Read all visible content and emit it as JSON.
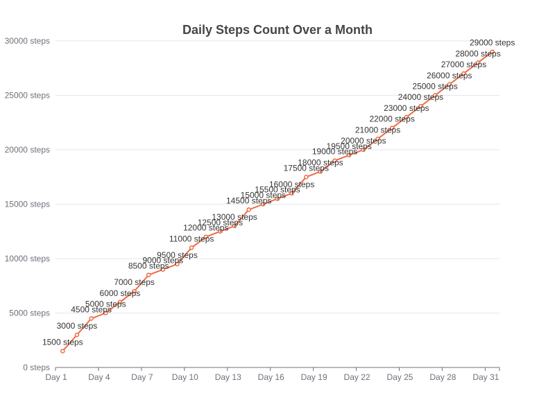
{
  "chart_data": {
    "type": "line",
    "title": "Daily Steps Count Over a Month",
    "xlabel": "",
    "ylabel": "",
    "x": [
      "Day 1",
      "Day 2",
      "Day 3",
      "Day 4",
      "Day 5",
      "Day 6",
      "Day 7",
      "Day 8",
      "Day 9",
      "Day 10",
      "Day 11",
      "Day 12",
      "Day 13",
      "Day 14",
      "Day 15",
      "Day 16",
      "Day 17",
      "Day 18",
      "Day 19",
      "Day 20",
      "Day 21",
      "Day 22",
      "Day 23",
      "Day 24",
      "Day 25",
      "Day 26",
      "Day 27",
      "Day 28",
      "Day 29",
      "Day 30",
      "Day 31"
    ],
    "x_tick_labels": [
      "Day 1",
      "Day 4",
      "Day 7",
      "Day 10",
      "Day 13",
      "Day 16",
      "Day 19",
      "Day 22",
      "Day 25",
      "Day 28",
      "Day 31"
    ],
    "series": [
      {
        "values": [
          1500,
          3000,
          4500,
          5000,
          6000,
          7000,
          8500,
          9000,
          9500,
          11000,
          12000,
          12500,
          13000,
          14500,
          15000,
          15500,
          16000,
          17500,
          18000,
          19000,
          19500,
          20000,
          21000,
          22000,
          23000,
          24000,
          25000,
          26000,
          27000,
          28000,
          29000
        ],
        "labels": [
          "1500 steps",
          "3000 steps",
          "4500 steps",
          "5000 steps",
          "6000 steps",
          "7000 steps",
          "8500 steps",
          "9000 steps",
          "9500 steps",
          "11000 steps",
          "12000 steps",
          "12500 steps",
          "13000 steps",
          "14500 steps",
          "15000 steps",
          "15500 steps",
          "16000 steps",
          "17500 steps",
          "18000 steps",
          "19000 steps",
          "19500 steps",
          "20000 steps",
          "21000 steps",
          "22000 steps",
          "23000 steps",
          "24000 steps",
          "25000 steps",
          "26000 steps",
          "27000 steps",
          "28000 steps",
          "29000 steps"
        ],
        "color": "#ee6a44"
      }
    ],
    "ylim": [
      0,
      30000
    ],
    "y_tick_labels": [
      "0 steps",
      "5000 steps",
      "10000 steps",
      "15000 steps",
      "20000 steps",
      "25000 steps",
      "30000 steps"
    ],
    "grid": true,
    "legend": "none"
  }
}
